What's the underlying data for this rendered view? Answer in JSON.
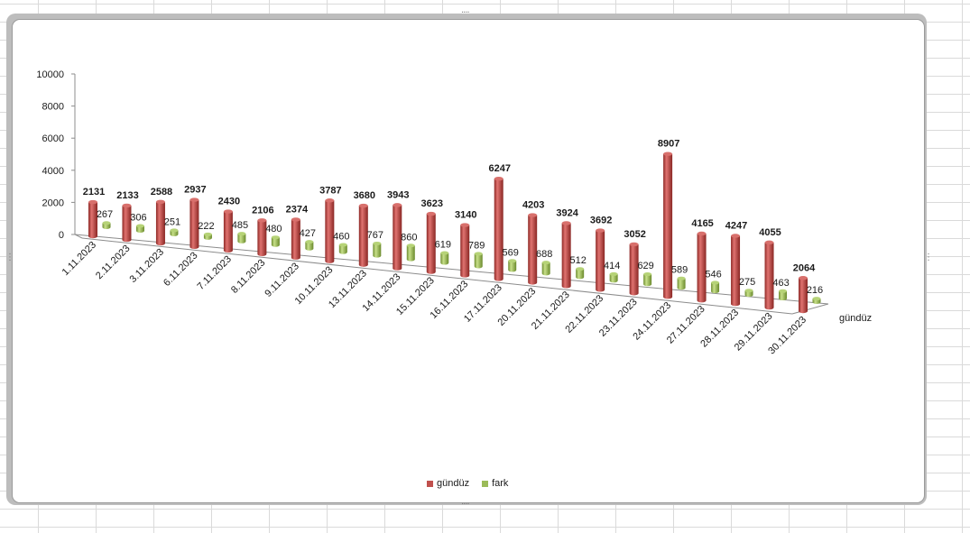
{
  "chart_data": {
    "type": "bar",
    "subtype": "3d-column",
    "categories": [
      "1.11.2023",
      "2.11.2023",
      "3.11.2023",
      "6.11.2023",
      "7.11.2023",
      "8.11.2023",
      "9.11.2023",
      "10.11.2023",
      "13.11.2023",
      "14.11.2023",
      "15.11.2023",
      "16.11.2023",
      "17.11.2023",
      "20.11.2023",
      "21.11.2023",
      "22.11.2023",
      "23.11.2023",
      "24.11.2023",
      "27.11.2023",
      "28.11.2023",
      "29.11.2023",
      "30.11.2023"
    ],
    "series": [
      {
        "name": "gündüz",
        "color": "#c0504d",
        "values": [
          2131,
          2133,
          2588,
          2937,
          2430,
          2106,
          2374,
          3787,
          3680,
          3943,
          3623,
          3140,
          6247,
          4203,
          3924,
          3692,
          3052,
          8907,
          4165,
          4247,
          4055,
          2064
        ]
      },
      {
        "name": "fark",
        "color": "#9bbb59",
        "values": [
          267,
          306,
          251,
          222,
          485,
          480,
          427,
          460,
          767,
          860,
          619,
          789,
          569,
          688,
          512,
          414,
          629,
          589,
          546,
          275,
          463,
          216
        ]
      }
    ],
    "y_ticks": [
      "0",
      "2000",
      "4000",
      "6000",
      "8000",
      "10000"
    ],
    "ylim": [
      0,
      10000
    ],
    "depth_axis_label": "gündüz",
    "legend_position": "bottom",
    "data_labels": true
  }
}
